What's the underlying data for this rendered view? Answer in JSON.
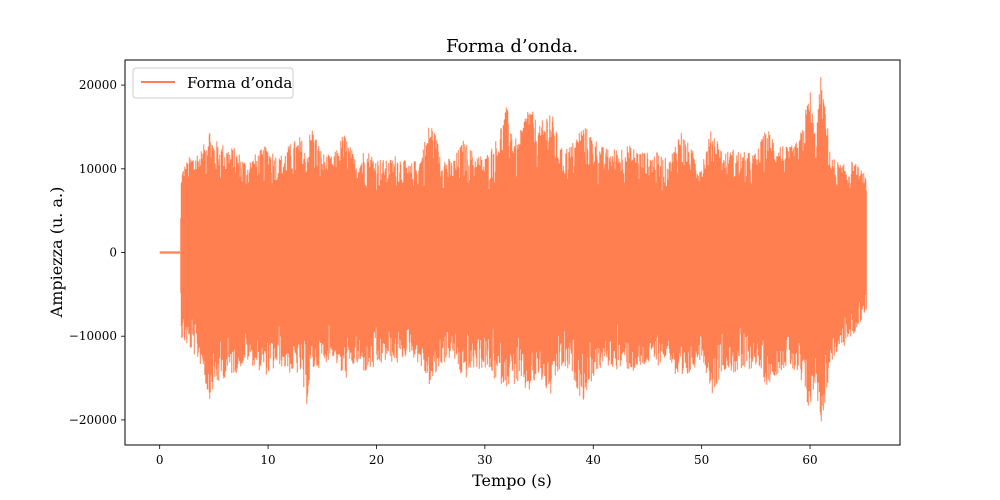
{
  "chart_data": {
    "type": "line",
    "title": "Forma d’onda.",
    "xlabel": "Tempo (s)",
    "ylabel": "Ampiezza (u. a.)",
    "xlim": [
      -3.2,
      68.3
    ],
    "ylim": [
      -23000,
      23000
    ],
    "x_ticks": [
      0,
      10,
      20,
      30,
      40,
      50,
      60
    ],
    "x_tick_labels": [
      "0",
      "10",
      "20",
      "30",
      "40",
      "50",
      "60"
    ],
    "y_ticks": [
      -20000,
      -10000,
      0,
      10000,
      20000
    ],
    "y_tick_labels": [
      "−20000",
      "−10000",
      "0",
      "10000",
      "20000"
    ],
    "grid": false,
    "legend_position": "top-left",
    "series": [
      {
        "name": "Forma d’onda",
        "color": "#ff7f50",
        "note_signal_start": 1.9,
        "note_signal_end": 65.2,
        "envelope_time": [
          0,
          1.9,
          2.0,
          3,
          4,
          4.5,
          5,
          6,
          7,
          8,
          9,
          10,
          11,
          12,
          13,
          13.5,
          14,
          15,
          16,
          17,
          18,
          19,
          20,
          21,
          22,
          23,
          24,
          25,
          26,
          27,
          28,
          29,
          30,
          31,
          32,
          33,
          34,
          35,
          36,
          37,
          38,
          39,
          40,
          41,
          42,
          43,
          44,
          45,
          46,
          47,
          48,
          49,
          50,
          51,
          52,
          53,
          54,
          55,
          56,
          57,
          58,
          59,
          60,
          60.5,
          61,
          62,
          63,
          64,
          65,
          65.2
        ],
        "envelope_max": [
          0,
          0,
          10000,
          12000,
          12500,
          15700,
          13500,
          13000,
          12500,
          11000,
          12000,
          13000,
          11500,
          13000,
          14000,
          12000,
          15500,
          12000,
          11500,
          14500,
          11500,
          12500,
          11500,
          11000,
          12000,
          10500,
          11500,
          16000,
          12000,
          11000,
          13500,
          12000,
          11500,
          13500,
          17500,
          13000,
          18200,
          15000,
          17700,
          12500,
          13000,
          15500,
          14000,
          12500,
          12500,
          13000,
          12500,
          12000,
          12000,
          11000,
          15000,
          12500,
          11000,
          15200,
          12000,
          12500,
          12000,
          12000,
          15000,
          13500,
          12500,
          13500,
          19800,
          14000,
          21200,
          11500,
          10500,
          11000,
          9500,
          8500
        ],
        "envelope_min": [
          0,
          0,
          -10500,
          -12000,
          -14000,
          -17800,
          -16500,
          -15000,
          -14500,
          -13000,
          -14000,
          -14800,
          -13500,
          -14500,
          -14700,
          -18800,
          -14500,
          -13500,
          -12500,
          -15500,
          -13500,
          -14500,
          -14000,
          -13000,
          -13500,
          -12000,
          -13500,
          -16300,
          -13500,
          -12500,
          -15500,
          -14000,
          -14000,
          -15500,
          -16000,
          -15800,
          -17000,
          -15000,
          -17500,
          -14000,
          -14500,
          -18000,
          -15000,
          -13500,
          -14000,
          -14000,
          -14500,
          -13500,
          -13500,
          -12500,
          -17000,
          -14500,
          -12500,
          -17000,
          -14000,
          -14500,
          -14500,
          -13500,
          -16000,
          -14500,
          -13500,
          -15500,
          -19400,
          -15500,
          -21000,
          -13000,
          -11500,
          -10000,
          -7500,
          -7000
        ]
      }
    ]
  }
}
